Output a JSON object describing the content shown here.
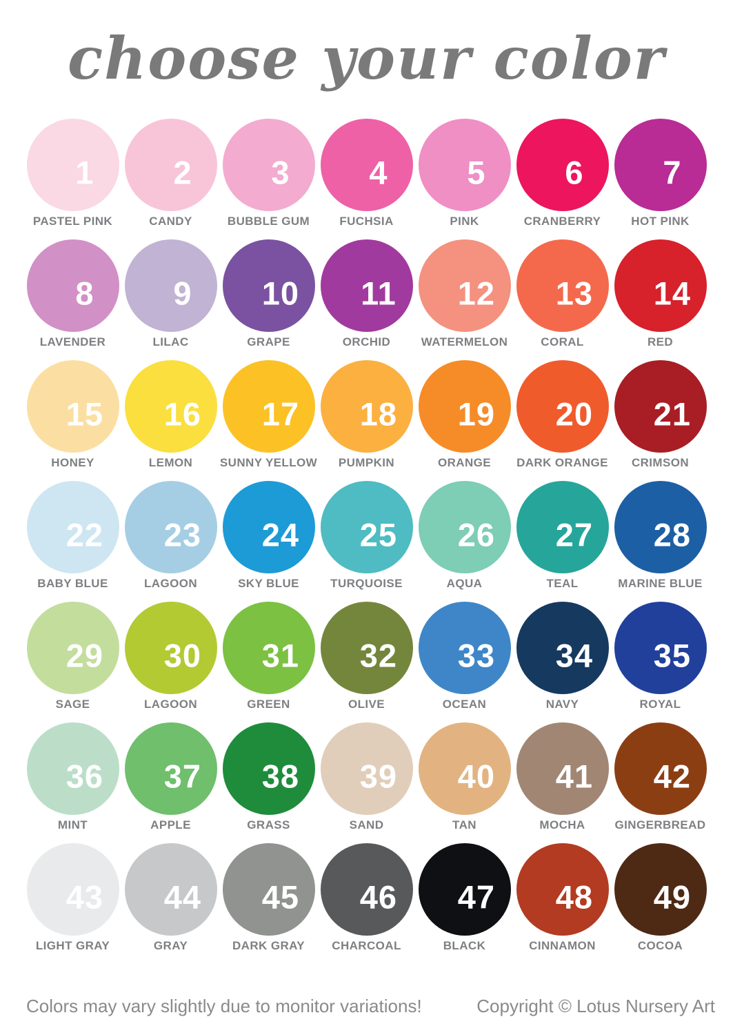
{
  "title": "choose your color",
  "title_color": "#7a7a7a",
  "footer": {
    "note": "Colors may vary slightly due to monitor variations!",
    "copyright": "Copyright © Lotus Nursery Art"
  },
  "colors": [
    {
      "number": 1,
      "label": "PASTEL PINK",
      "hex": "#FAD8E4"
    },
    {
      "number": 2,
      "label": "CANDY",
      "hex": "#F8C5D8"
    },
    {
      "number": 3,
      "label": "BUBBLE GUM",
      "hex": "#F3ABCF"
    },
    {
      "number": 4,
      "label": "FUCHSIA",
      "hex": "#EE61A6"
    },
    {
      "number": 5,
      "label": "PINK",
      "hex": "#EF8FC4"
    },
    {
      "number": 6,
      "label": "CRANBERRY",
      "hex": "#EC155E"
    },
    {
      "number": 7,
      "label": "HOT PINK",
      "hex": "#B92B95"
    },
    {
      "number": 8,
      "label": "LAVENDER",
      "hex": "#D190C6"
    },
    {
      "number": 9,
      "label": "LILAC",
      "hex": "#C1B3D3"
    },
    {
      "number": 10,
      "label": "GRAPE",
      "hex": "#7A52A1"
    },
    {
      "number": 11,
      "label": "ORCHID",
      "hex": "#A13A9E"
    },
    {
      "number": 12,
      "label": "WATERMELON",
      "hex": "#F4917F"
    },
    {
      "number": 13,
      "label": "CORAL",
      "hex": "#F4694C"
    },
    {
      "number": 14,
      "label": "RED",
      "hex": "#D7212B"
    },
    {
      "number": 15,
      "label": "HONEY",
      "hex": "#FBDFA2"
    },
    {
      "number": 16,
      "label": "LEMON",
      "hex": "#FADF3E"
    },
    {
      "number": 17,
      "label": "SUNNY YELLOW",
      "hex": "#FCC125"
    },
    {
      "number": 18,
      "label": "PUMPKIN",
      "hex": "#FBB040"
    },
    {
      "number": 19,
      "label": "ORANGE",
      "hex": "#F68C28"
    },
    {
      "number": 20,
      "label": "DARK ORANGE",
      "hex": "#F05B2C"
    },
    {
      "number": 21,
      "label": "CRIMSON",
      "hex": "#A81E24"
    },
    {
      "number": 22,
      "label": "BABY BLUE",
      "hex": "#CEE6F2"
    },
    {
      "number": 23,
      "label": "LAGOON",
      "hex": "#A5CEE4"
    },
    {
      "number": 24,
      "label": "SKY BLUE",
      "hex": "#1D9BD7"
    },
    {
      "number": 25,
      "label": "TURQUOISE",
      "hex": "#4EBCC2"
    },
    {
      "number": 26,
      "label": "AQUA",
      "hex": "#7ECDB5"
    },
    {
      "number": 27,
      "label": "TEAL",
      "hex": "#26A69A"
    },
    {
      "number": 28,
      "label": "MARINE BLUE",
      "hex": "#1C5FA5"
    },
    {
      "number": 29,
      "label": "SAGE",
      "hex": "#C3DD9D"
    },
    {
      "number": 30,
      "label": "LAGOON",
      "hex": "#B3CA33"
    },
    {
      "number": 31,
      "label": "GREEN",
      "hex": "#7CC142"
    },
    {
      "number": 32,
      "label": "OLIVE",
      "hex": "#74863C"
    },
    {
      "number": 33,
      "label": "OCEAN",
      "hex": "#3E86C7"
    },
    {
      "number": 34,
      "label": "NAVY",
      "hex": "#16395F"
    },
    {
      "number": 35,
      "label": "ROYAL",
      "hex": "#20409B"
    },
    {
      "number": 36,
      "label": "MINT",
      "hex": "#BCDEC9"
    },
    {
      "number": 37,
      "label": "APPLE",
      "hex": "#6FBF6C"
    },
    {
      "number": 38,
      "label": "GRASS",
      "hex": "#1F8C3C"
    },
    {
      "number": 39,
      "label": "SAND",
      "hex": "#E1CEBA"
    },
    {
      "number": 40,
      "label": "TAN",
      "hex": "#E2B381"
    },
    {
      "number": 41,
      "label": "MOCHA",
      "hex": "#A18674"
    },
    {
      "number": 42,
      "label": "GINGERBREAD",
      "hex": "#8C3E13"
    },
    {
      "number": 43,
      "label": "LIGHT GRAY",
      "hex": "#E8EAEC"
    },
    {
      "number": 44,
      "label": "GRAY",
      "hex": "#C7C8CA"
    },
    {
      "number": 45,
      "label": "DARK GRAY",
      "hex": "#90938F"
    },
    {
      "number": 46,
      "label": "CHARCOAL",
      "hex": "#58595B"
    },
    {
      "number": 47,
      "label": "BLACK",
      "hex": "#0E1013"
    },
    {
      "number": 48,
      "label": "CINNAMON",
      "hex": "#B33B21"
    },
    {
      "number": 49,
      "label": "COCOA",
      "hex": "#4E2A14"
    }
  ]
}
